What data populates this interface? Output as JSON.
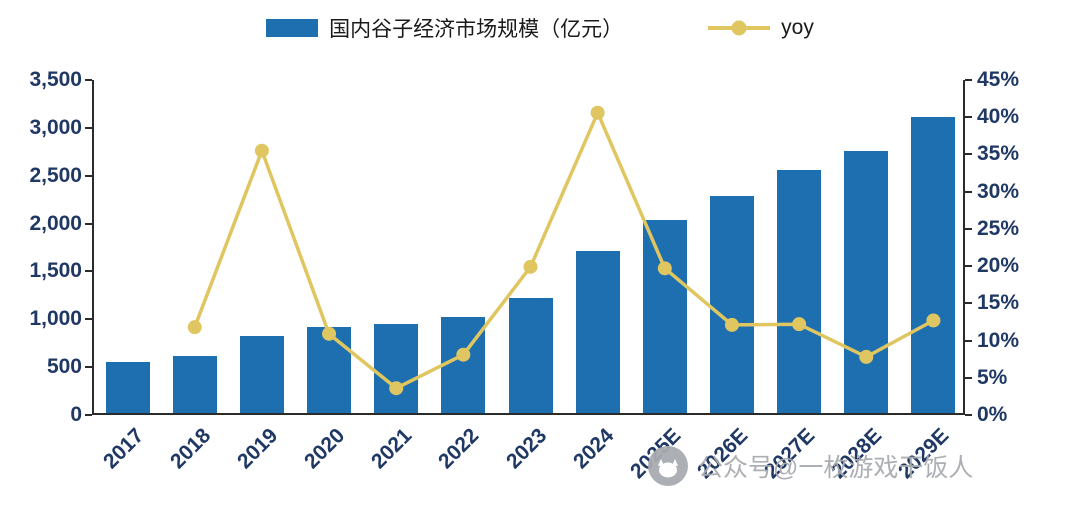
{
  "legend": {
    "bar_label": "国内谷子经济市场规模（亿元）",
    "line_label": "yoy"
  },
  "watermark": {
    "text": "公众号@一枚游戏干饭人",
    "icon": "zhihu-avatar-icon"
  },
  "colors": {
    "bar": "#1e6fb0",
    "line": "#e0c660",
    "axis_text": "#1f3864",
    "axis_line": "#2b2b2b",
    "legend_text": "#1a1a1a",
    "watermark": "#a8abaf"
  },
  "chart_data": {
    "type": "bar",
    "subtype": "bar+line combo, dual axis",
    "title": "",
    "categories": [
      "2017",
      "2018",
      "2019",
      "2020",
      "2021",
      "2022",
      "2023",
      "2024",
      "2025E",
      "2026E",
      "2027E",
      "2028E",
      "2029E"
    ],
    "series": [
      {
        "name": "国内谷子经济市场规模（亿元）",
        "type": "bar",
        "axis": "left",
        "values": [
          532,
          595,
          806,
          894,
          926,
          1001,
          1201,
          1689,
          2021,
          2266,
          2542,
          2740,
          3089
        ]
      },
      {
        "name": "yoy",
        "type": "line",
        "axis": "right",
        "unit": "%",
        "values": [
          null,
          11.8,
          35.5,
          10.9,
          3.6,
          8.1,
          19.9,
          40.6,
          19.7,
          12.1,
          12.2,
          7.8,
          12.7
        ]
      }
    ],
    "left_axis": {
      "min": 0,
      "max": 3500,
      "step": 500,
      "tick_labels": [
        "0",
        "500",
        "1,000",
        "1,500",
        "2,000",
        "2,500",
        "3,000",
        "3,500"
      ]
    },
    "right_axis": {
      "min": 0,
      "max": 45,
      "step": 5,
      "format": "percent",
      "tick_labels": [
        "0%",
        "5%",
        "10%",
        "15%",
        "20%",
        "25%",
        "30%",
        "35%",
        "40%",
        "45%"
      ]
    },
    "grid": false,
    "legend_position": "top-center",
    "x_label_rotation": -45
  }
}
